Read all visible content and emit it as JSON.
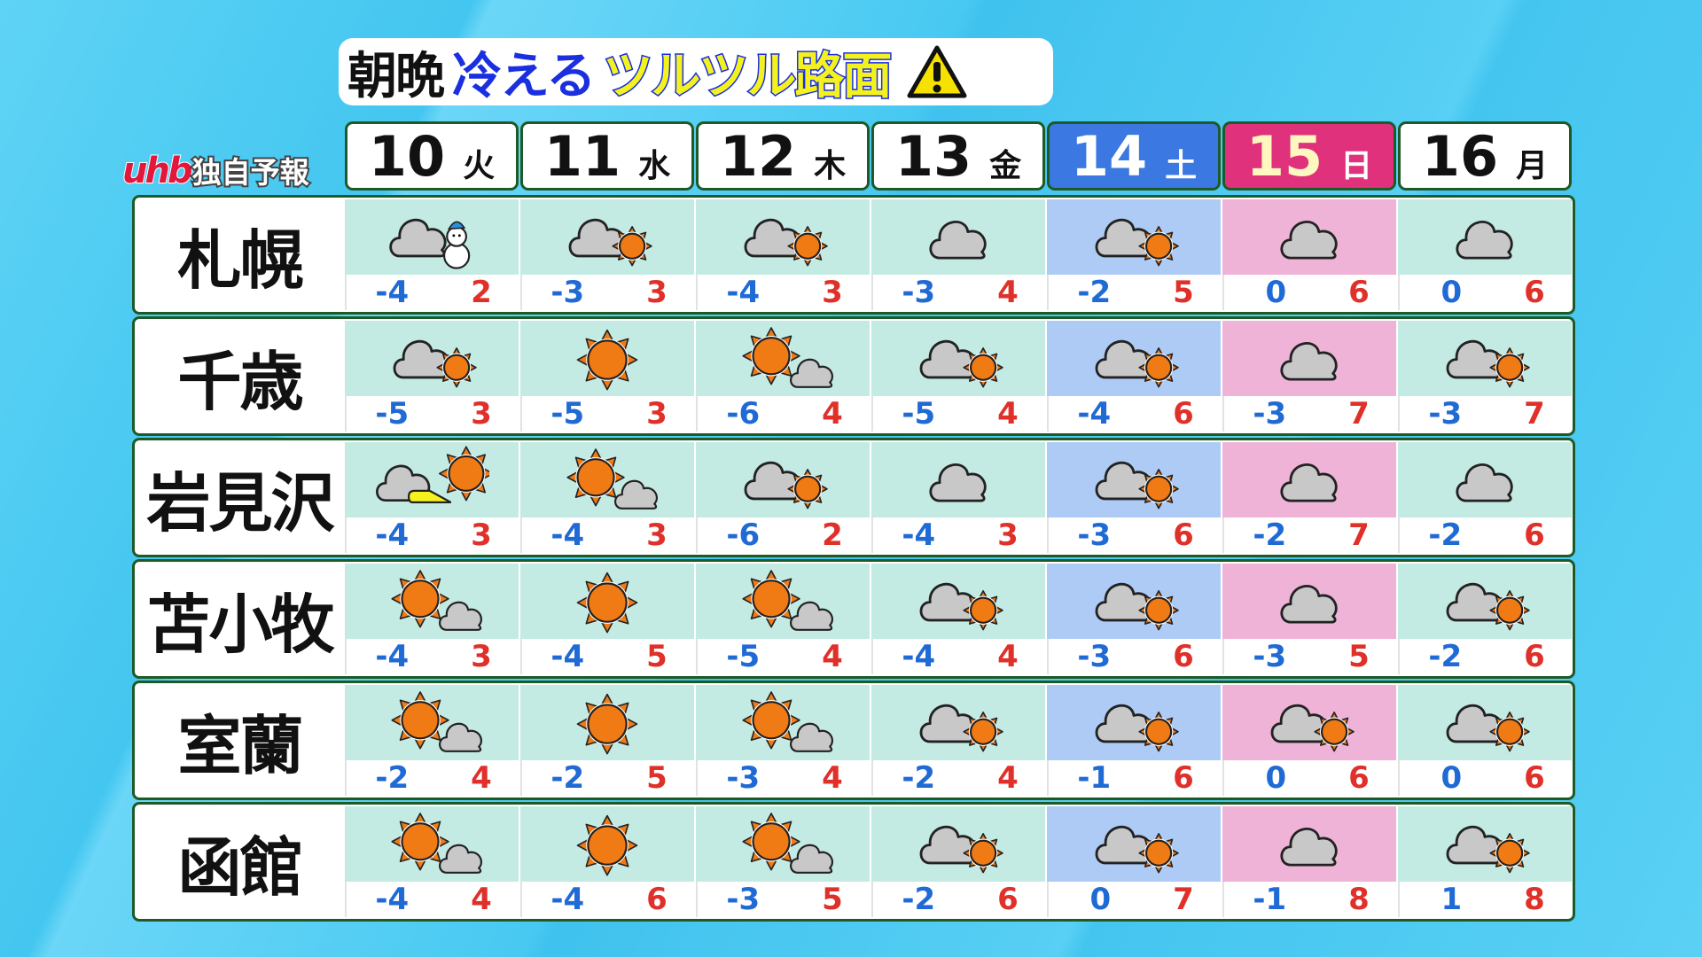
{
  "title": {
    "part1": "朝晩",
    "part2": "冷える",
    "part3": "ツルツル路面",
    "icon": "warning-icon"
  },
  "logo": {
    "brand": "uhb",
    "label": "独自予報"
  },
  "colors": {
    "low": "#1f6ad4",
    "high": "#e0302a",
    "saturday": "#3b78e2",
    "sunday": "#e0317c",
    "border": "#1e5a28"
  },
  "days": [
    {
      "date": "10",
      "weekday": "火",
      "type": "weekday"
    },
    {
      "date": "11",
      "weekday": "水",
      "type": "weekday"
    },
    {
      "date": "12",
      "weekday": "木",
      "type": "weekday"
    },
    {
      "date": "13",
      "weekday": "金",
      "type": "weekday"
    },
    {
      "date": "14",
      "weekday": "土",
      "type": "sat"
    },
    {
      "date": "15",
      "weekday": "日",
      "type": "sun"
    },
    {
      "date": "16",
      "weekday": "月",
      "type": "weekday"
    }
  ],
  "cities": [
    {
      "name": "札幌",
      "forecast": [
        {
          "icon": "cloud-snow",
          "low": "-4",
          "high": "2"
        },
        {
          "icon": "cloud-sun",
          "low": "-3",
          "high": "3"
        },
        {
          "icon": "cloud-sun",
          "low": "-4",
          "high": "3"
        },
        {
          "icon": "cloud",
          "low": "-3",
          "high": "4"
        },
        {
          "icon": "cloud-sun",
          "low": "-2",
          "high": "5"
        },
        {
          "icon": "cloud",
          "low": "0",
          "high": "6"
        },
        {
          "icon": "cloud",
          "low": "0",
          "high": "6"
        }
      ]
    },
    {
      "name": "千歳",
      "forecast": [
        {
          "icon": "cloud-sun",
          "low": "-5",
          "high": "3"
        },
        {
          "icon": "sun",
          "low": "-5",
          "high": "3"
        },
        {
          "icon": "sun-cloud",
          "low": "-6",
          "high": "4"
        },
        {
          "icon": "cloud-sun",
          "low": "-5",
          "high": "4"
        },
        {
          "icon": "cloud-sun",
          "low": "-4",
          "high": "6"
        },
        {
          "icon": "cloud",
          "low": "-3",
          "high": "7"
        },
        {
          "icon": "cloud-sun",
          "low": "-3",
          "high": "7"
        }
      ]
    },
    {
      "name": "岩見沢",
      "forecast": [
        {
          "icon": "cloud-then-sun",
          "low": "-4",
          "high": "3"
        },
        {
          "icon": "sun-cloud",
          "low": "-4",
          "high": "3"
        },
        {
          "icon": "cloud-sun",
          "low": "-6",
          "high": "2"
        },
        {
          "icon": "cloud",
          "low": "-4",
          "high": "3"
        },
        {
          "icon": "cloud-sun",
          "low": "-3",
          "high": "6"
        },
        {
          "icon": "cloud",
          "low": "-2",
          "high": "7"
        },
        {
          "icon": "cloud",
          "low": "-2",
          "high": "6"
        }
      ]
    },
    {
      "name": "苫小牧",
      "forecast": [
        {
          "icon": "sun-cloud",
          "low": "-4",
          "high": "3"
        },
        {
          "icon": "sun",
          "low": "-4",
          "high": "5"
        },
        {
          "icon": "sun-cloud",
          "low": "-5",
          "high": "4"
        },
        {
          "icon": "cloud-sun",
          "low": "-4",
          "high": "4"
        },
        {
          "icon": "cloud-sun",
          "low": "-3",
          "high": "6"
        },
        {
          "icon": "cloud",
          "low": "-3",
          "high": "5"
        },
        {
          "icon": "cloud-sun",
          "low": "-2",
          "high": "6"
        }
      ]
    },
    {
      "name": "室蘭",
      "forecast": [
        {
          "icon": "sun-cloud",
          "low": "-2",
          "high": "4"
        },
        {
          "icon": "sun",
          "low": "-2",
          "high": "5"
        },
        {
          "icon": "sun-cloud",
          "low": "-3",
          "high": "4"
        },
        {
          "icon": "cloud-sun",
          "low": "-2",
          "high": "4"
        },
        {
          "icon": "cloud-sun",
          "low": "-1",
          "high": "6"
        },
        {
          "icon": "cloud-sun",
          "low": "0",
          "high": "6"
        },
        {
          "icon": "cloud-sun",
          "low": "0",
          "high": "6"
        }
      ]
    },
    {
      "name": "函館",
      "forecast": [
        {
          "icon": "sun-cloud",
          "low": "-4",
          "high": "4"
        },
        {
          "icon": "sun",
          "low": "-4",
          "high": "6"
        },
        {
          "icon": "sun-cloud",
          "low": "-3",
          "high": "5"
        },
        {
          "icon": "cloud-sun",
          "low": "-2",
          "high": "6"
        },
        {
          "icon": "cloud-sun",
          "low": "0",
          "high": "7"
        },
        {
          "icon": "cloud",
          "low": "-1",
          "high": "8"
        },
        {
          "icon": "cloud-sun",
          "low": "1",
          "high": "8"
        }
      ]
    }
  ]
}
